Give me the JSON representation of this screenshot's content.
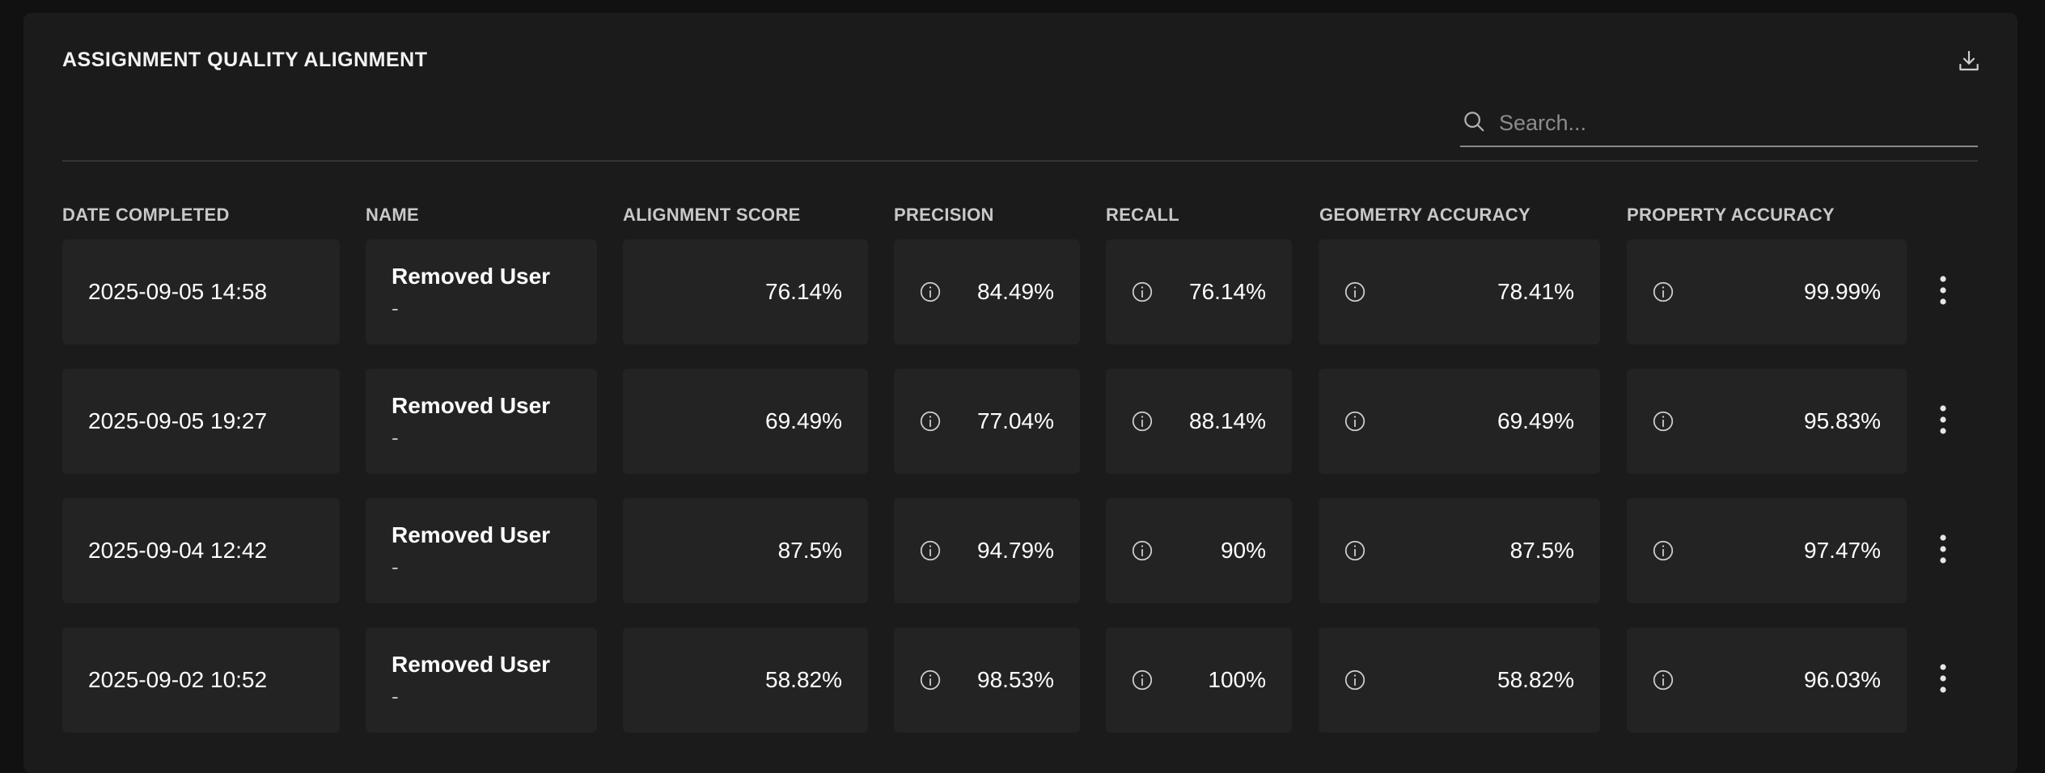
{
  "panel": {
    "title": "ASSIGNMENT QUALITY ALIGNMENT",
    "download_icon": "download-icon"
  },
  "search": {
    "placeholder": "Search...",
    "icon": "search-icon"
  },
  "table": {
    "columns": [
      "DATE COMPLETED",
      "NAME",
      "ALIGNMENT SCORE",
      "PRECISION",
      "RECALL",
      "GEOMETRY ACCURACY",
      "PROPERTY ACCURACY"
    ],
    "rows": [
      {
        "date": "2025-09-05 14:58",
        "name": "Removed User",
        "sub": "-",
        "alignment": "76.14%",
        "precision": "84.49%",
        "recall": "76.14%",
        "geometry": "78.41%",
        "property": "99.99%"
      },
      {
        "date": "2025-09-05 19:27",
        "name": "Removed User",
        "sub": "-",
        "alignment": "69.49%",
        "precision": "77.04%",
        "recall": "88.14%",
        "geometry": "69.49%",
        "property": "95.83%"
      },
      {
        "date": "2025-09-04 12:42",
        "name": "Removed User",
        "sub": "-",
        "alignment": "87.5%",
        "precision": "94.79%",
        "recall": "90%",
        "geometry": "87.5%",
        "property": "97.47%"
      },
      {
        "date": "2025-09-02 10:52",
        "name": "Removed User",
        "sub": "-",
        "alignment": "58.82%",
        "precision": "98.53%",
        "recall": "100%",
        "geometry": "58.82%",
        "property": "96.03%"
      }
    ]
  },
  "icons": {
    "info": "info-icon",
    "row_menu": "more-vertical-icon"
  }
}
